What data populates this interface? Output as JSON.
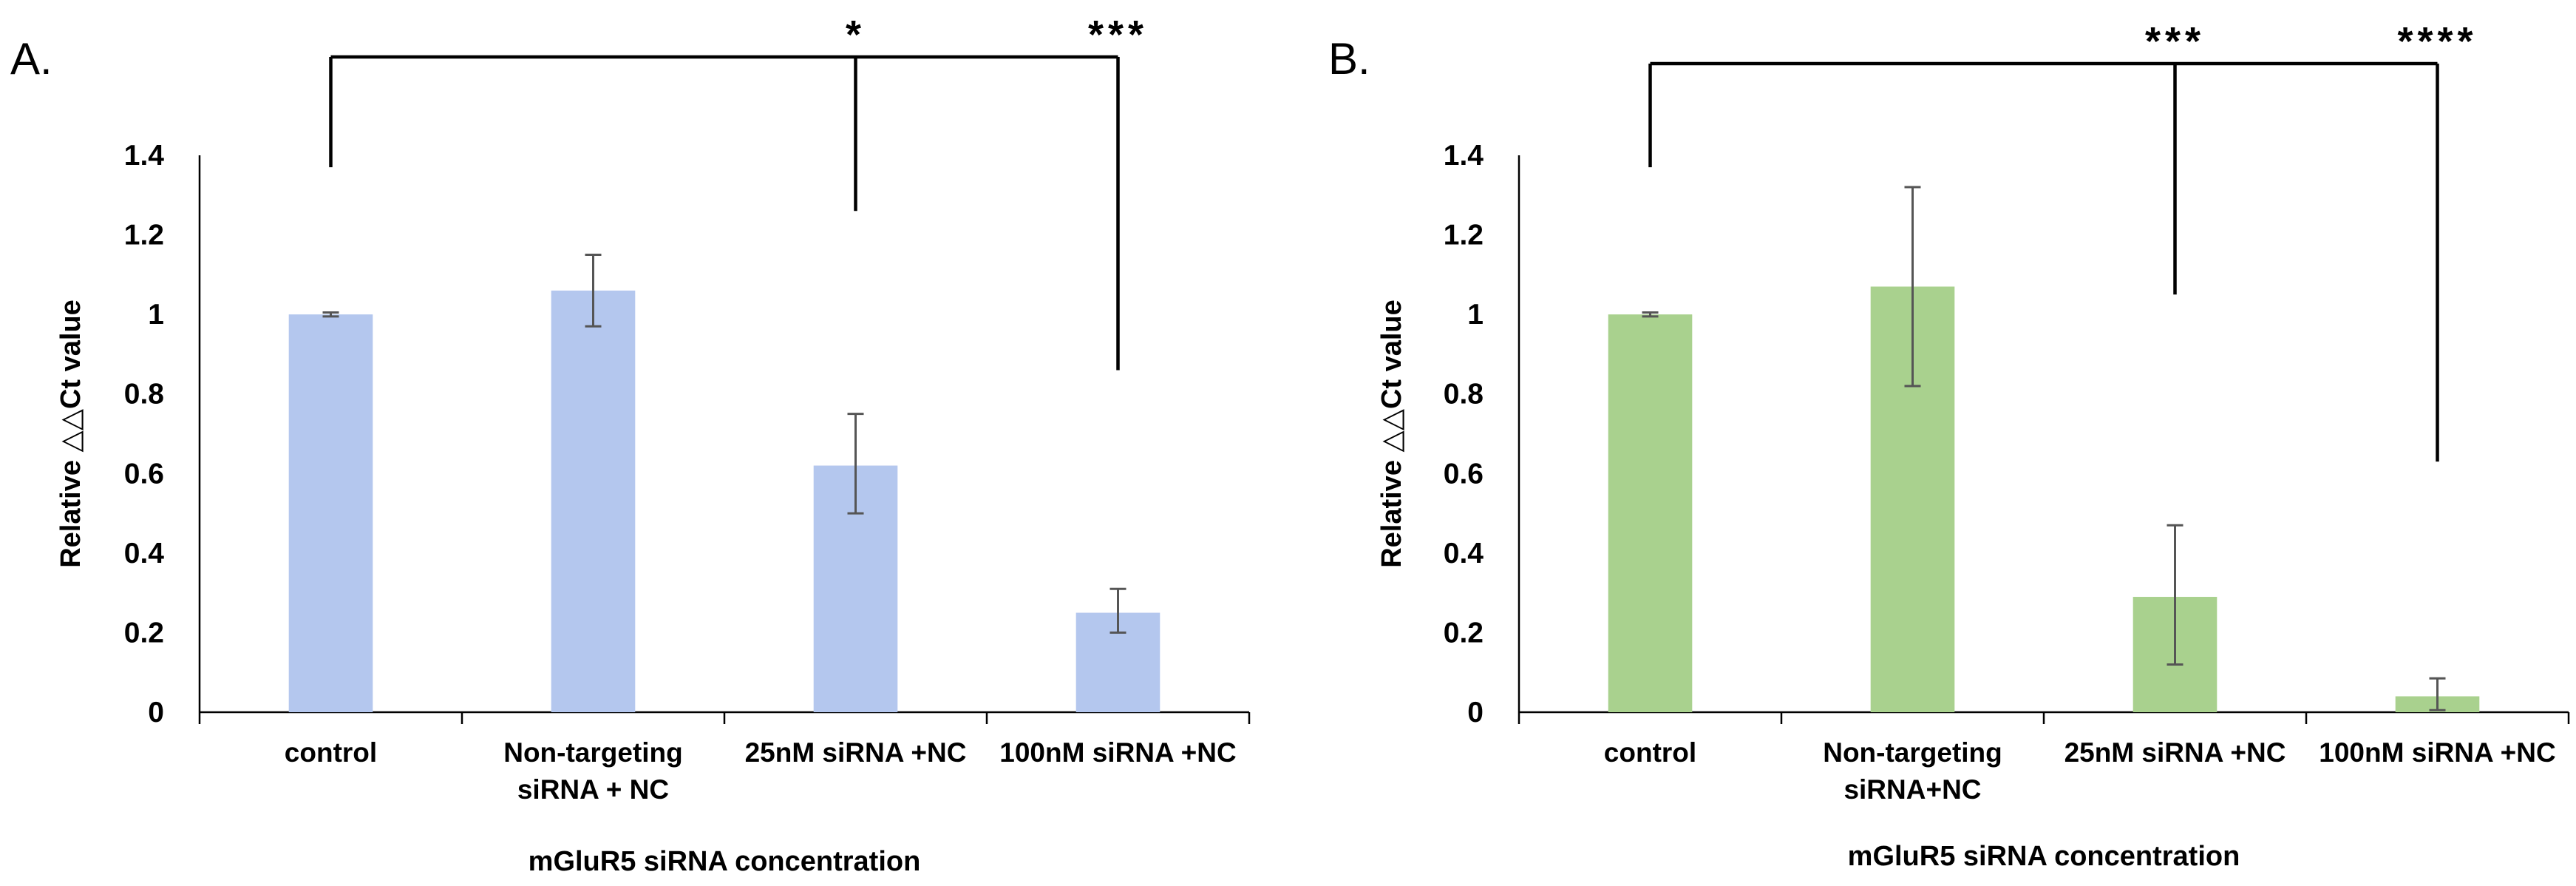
{
  "chart_data": [
    {
      "type": "bar",
      "panel_label": "A.",
      "categories": [
        [
          "control"
        ],
        [
          "Non-targeting",
          "siRNA + NC"
        ],
        [
          "25nM siRNA +NC"
        ],
        [
          "100nM siRNA +NC"
        ]
      ],
      "values": [
        1.0,
        1.06,
        0.62,
        0.25
      ],
      "errors": [
        [
          0.995,
          1.005
        ],
        [
          0.97,
          1.15
        ],
        [
          0.5,
          0.75
        ],
        [
          0.2,
          0.31
        ]
      ],
      "bar_color": "#b4c7ee",
      "ylabel": "Relative △△Ct value",
      "xlabel": "mGluR5 siRNA concentration",
      "ylim": [
        0,
        1.4
      ],
      "yticks": [
        "0",
        "0.2",
        "0.4",
        "0.6",
        "0.8",
        "1",
        "1.2",
        "1.4"
      ],
      "significance": [
        {
          "to": 2,
          "label": "*",
          "drop_to": 1.26
        },
        {
          "to": 3,
          "label": "***",
          "drop_to": 0.86
        }
      ]
    },
    {
      "type": "bar",
      "panel_label": "B.",
      "categories": [
        [
          "control"
        ],
        [
          "Non-targeting",
          "siRNA+NC"
        ],
        [
          "25nM siRNA +NC"
        ],
        [
          "100nM siRNA +NC"
        ]
      ],
      "values": [
        1.0,
        1.07,
        0.29,
        0.04
      ],
      "errors": [
        [
          0.995,
          1.005
        ],
        [
          0.82,
          1.32
        ],
        [
          0.12,
          0.47
        ],
        [
          0.005,
          0.085
        ]
      ],
      "bar_color": "#a9d18e",
      "ylabel": "Relative △△Ct value",
      "xlabel": "mGluR5 siRNA concentration",
      "ylim": [
        0,
        1.4
      ],
      "yticks": [
        "0",
        "0.2",
        "0.4",
        "0.6",
        "0.8",
        "1",
        "1.2",
        "1.4"
      ],
      "significance": [
        {
          "to": 2,
          "label": "***",
          "drop_to": 1.05
        },
        {
          "to": 3,
          "label": "****",
          "drop_to": 0.63
        }
      ]
    }
  ]
}
